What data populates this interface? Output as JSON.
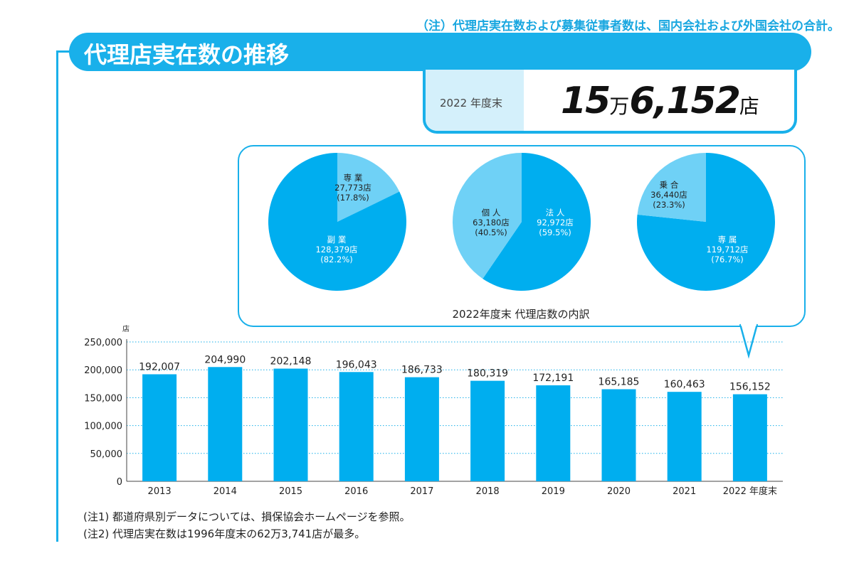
{
  "note_top": "（注）代理店実在数および募集従事者数は、国内会社および外国会社の合計。",
  "title": "代理店実在数の推移",
  "summary": {
    "label": "2022 年度末",
    "value_man": "15",
    "unit_man": "万",
    "value_rest": "6,152",
    "unit": "店"
  },
  "colors": {
    "dark": "#00aeef",
    "light": "#6fd1f6",
    "accent": "#19b0ea"
  },
  "chart_data": [
    {
      "type": "pie",
      "title": "",
      "slices": [
        {
          "label": "専 業",
          "value": 27773,
          "value_text": "27,773店",
          "pct": "(17.8%)",
          "color": "light"
        },
        {
          "label": "副 業",
          "value": 128379,
          "value_text": "128,379店",
          "pct": "(82.2%)",
          "color": "dark"
        }
      ]
    },
    {
      "type": "pie",
      "title": "",
      "slices": [
        {
          "label": "法 人",
          "value": 92972,
          "value_text": "92,972店",
          "pct": "(59.5%)",
          "color": "dark"
        },
        {
          "label": "個 人",
          "value": 63180,
          "value_text": "63,180店",
          "pct": "(40.5%)",
          "color": "light"
        }
      ]
    },
    {
      "type": "pie",
      "title": "",
      "slices": [
        {
          "label": "専 属",
          "value": 119712,
          "value_text": "119,712店",
          "pct": "(76.7%)",
          "color": "dark"
        },
        {
          "label": "乗 合",
          "value": 36440,
          "value_text": "36,440店",
          "pct": "(23.3%)",
          "color": "light"
        }
      ]
    },
    {
      "type": "bar",
      "ylabel": "店",
      "ylim": [
        0,
        250000
      ],
      "grid": true,
      "yticks": [
        "0",
        "50,000",
        "100,000",
        "150,000",
        "200,000",
        "250,000"
      ],
      "categories": [
        "2013",
        "2014",
        "2015",
        "2016",
        "2017",
        "2018",
        "2019",
        "2020",
        "2021",
        "2022 年度末"
      ],
      "values": [
        192007,
        204990,
        202148,
        196043,
        186733,
        180319,
        172191,
        165185,
        160463,
        156152
      ],
      "labels": [
        "192,007",
        "204,990",
        "202,148",
        "196,043",
        "186,733",
        "180,319",
        "172,191",
        "165,185",
        "160,463",
        "156,152"
      ]
    }
  ],
  "pie_caption": "2022年度末 代理店数の内訳",
  "footnotes": [
    "(注1) 都道府県別データについては、損保協会ホームページを参照。",
    "(注2) 代理店実在数は1996年度末の62万3,741店が最多。"
  ]
}
